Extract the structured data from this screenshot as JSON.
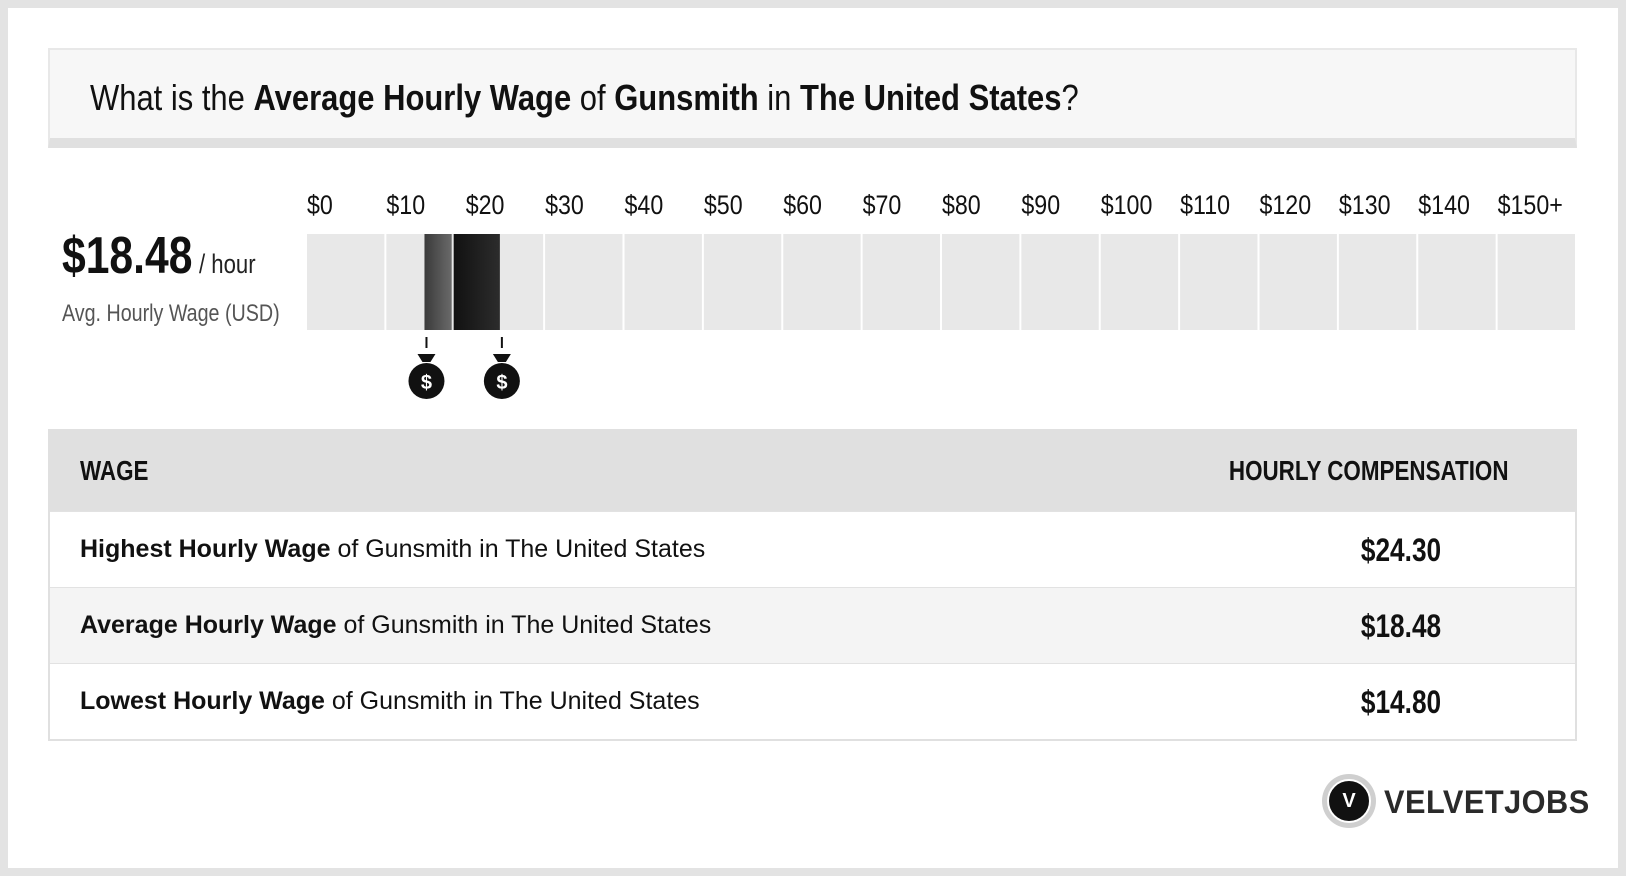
{
  "title": {
    "p1": "What is the ",
    "b1": "Average Hourly Wage",
    "p2": " of ",
    "b2": "Gunsmith",
    "p3": " in ",
    "b3": "The United States",
    "p4": "?"
  },
  "summary": {
    "value": "$18.48",
    "unit": "/ hour",
    "label": "Avg. Hourly Wage (USD)"
  },
  "chart_data": {
    "type": "bar",
    "ticks": [
      "$0",
      "$10",
      "$20",
      "$30",
      "$40",
      "$50",
      "$60",
      "$70",
      "$80",
      "$90",
      "$100",
      "$110",
      "$120",
      "$130",
      "$140",
      "$150+"
    ],
    "range": [
      0,
      150
    ],
    "lowest": 14.8,
    "average": 18.48,
    "highest": 24.3,
    "marker_icon": "money-bag-icon",
    "colors": {
      "track": "#e8e8e8",
      "low_band_start": "#3a3a3a",
      "low_band_end": "#6a6a6a",
      "high_band_start": "#111111",
      "high_band_end": "#2c2c2c"
    }
  },
  "table": {
    "header_wage": "WAGE",
    "header_comp": "HOURLY COMPENSATION",
    "rows": [
      {
        "bold": "Highest Hourly Wage",
        "rest": " of Gunsmith in The United States",
        "value": "$24.30"
      },
      {
        "bold": "Average Hourly Wage",
        "rest": " of Gunsmith in The United States",
        "value": "$18.48"
      },
      {
        "bold": "Lowest Hourly Wage",
        "rest": " of Gunsmith in The United States",
        "value": "$14.80"
      }
    ]
  },
  "logo": {
    "letter": "V",
    "brand": "VELVETJOBS"
  }
}
